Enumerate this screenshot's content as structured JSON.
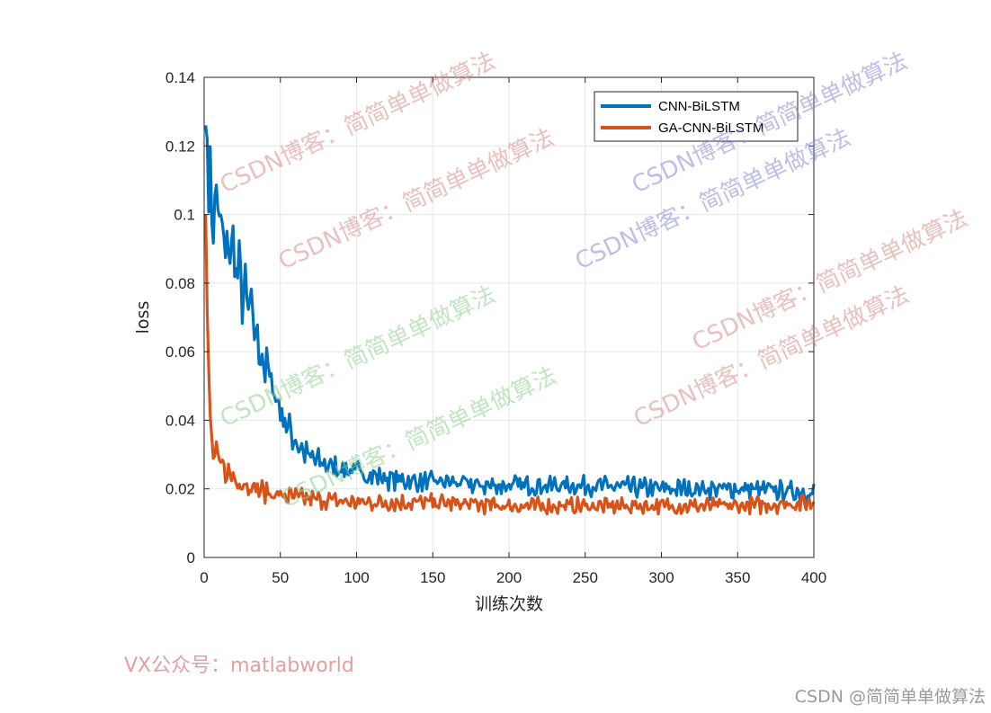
{
  "chart_data": {
    "type": "line",
    "xlabel": "训练次数",
    "ylabel": "loss",
    "xlim": [
      0,
      400
    ],
    "ylim": [
      0,
      0.14
    ],
    "xticks": [
      "0",
      "50",
      "100",
      "150",
      "200",
      "250",
      "300",
      "350",
      "400"
    ],
    "yticks": [
      "0",
      "0.02",
      "0.04",
      "0.06",
      "0.08",
      "0.1",
      "0.12",
      "0.14"
    ],
    "grid": true,
    "legend_position": "top-right",
    "series": [
      {
        "name": "CNN-BiLSTM",
        "color": "#0072BD",
        "x": [
          1,
          3,
          5,
          7,
          9,
          12,
          15,
          18,
          21,
          25,
          30,
          35,
          40,
          45,
          50,
          55,
          60,
          65,
          70,
          80,
          90,
          100,
          120,
          140,
          160,
          180,
          200,
          250,
          300,
          350,
          400
        ],
        "y": [
          0.126,
          0.118,
          0.098,
          0.104,
          0.103,
          0.092,
          0.088,
          0.092,
          0.085,
          0.078,
          0.072,
          0.063,
          0.056,
          0.05,
          0.043,
          0.038,
          0.034,
          0.031,
          0.029,
          0.027,
          0.026,
          0.025,
          0.023,
          0.022,
          0.022,
          0.021,
          0.021,
          0.021,
          0.02,
          0.02,
          0.019
        ]
      },
      {
        "name": "GA-CNN-BiLSTM",
        "color": "#D95319",
        "x": [
          1,
          2,
          3,
          4,
          5,
          7,
          10,
          15,
          20,
          30,
          40,
          50,
          70,
          100,
          150,
          200,
          250,
          300,
          350,
          400
        ],
        "y": [
          0.1,
          0.072,
          0.055,
          0.04,
          0.032,
          0.03,
          0.027,
          0.025,
          0.023,
          0.021,
          0.019,
          0.018,
          0.017,
          0.016,
          0.016,
          0.015,
          0.015,
          0.015,
          0.015,
          0.016
        ]
      }
    ]
  },
  "watermarks": [
    {
      "text": "CSDN博客：简简单单做算法",
      "color": "#d98c8c"
    },
    {
      "text": "CSDN博客：简简单单做算法",
      "color": "#d98c8c"
    },
    {
      "text": "CSDN博客：简简单单做算法",
      "color": "#8a8ad6"
    },
    {
      "text": "CSDN博客：简简单单做算法",
      "color": "#8a8ad6"
    },
    {
      "text": "CSDN博客：简简单单做算法",
      "color": "#d98c8c"
    },
    {
      "text": "CSDN博客：简简单单做算法",
      "color": "#d98c8c"
    },
    {
      "text": "CSDN博客：简简单单做算法",
      "color": "#8fd08f"
    },
    {
      "text": "CSDN博客：简简单单做算法",
      "color": "#8fd08f"
    }
  ],
  "footer": {
    "left": "VX公众号：matlabworld",
    "right": "CSDN @简简单单做算法"
  }
}
